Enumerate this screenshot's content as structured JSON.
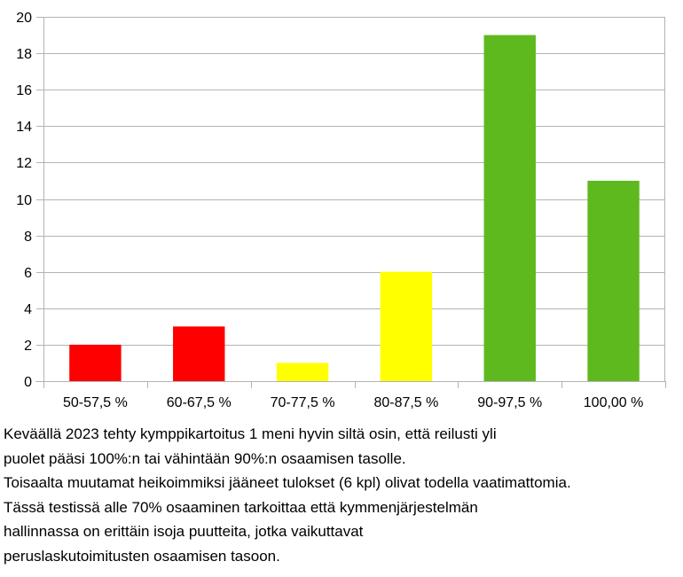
{
  "chart_data": {
    "type": "bar",
    "categories": [
      "50-57,5 %",
      "60-67,5 %",
      "70-77,5 %",
      "80-87,5 %",
      "90-97,5 %",
      "100,00 %"
    ],
    "values": [
      2,
      3,
      1,
      6,
      19,
      11
    ],
    "bar_colors": [
      "#ff0000",
      "#ff0000",
      "#ffff00",
      "#ffff00",
      "#5eb91e",
      "#5eb91e"
    ],
    "ylim": [
      0,
      20
    ],
    "yticks": [
      0,
      2,
      4,
      6,
      8,
      10,
      12,
      14,
      16,
      18,
      20
    ],
    "grid": true,
    "legend": "none"
  },
  "caption": {
    "lines": [
      "Keväällä 2023 tehty kymppikartoitus 1 meni hyvin siltä osin, että reilusti yli",
      "puolet pääsi 100%:n tai vähintään 90%:n osaamisen tasolle.",
      "Toisaalta muutamat heikoimmiksi jääneet tulokset (6 kpl) olivat todella vaatimattomia.",
      "Tässä testissä alle 70% osaaminen tarkoittaa että kymmenjärjestelmän",
      "hallinnassa on erittäin isoja puutteita, jotka vaikuttavat",
      "peruslaskutoimitusten osaamisen tasoon."
    ]
  }
}
